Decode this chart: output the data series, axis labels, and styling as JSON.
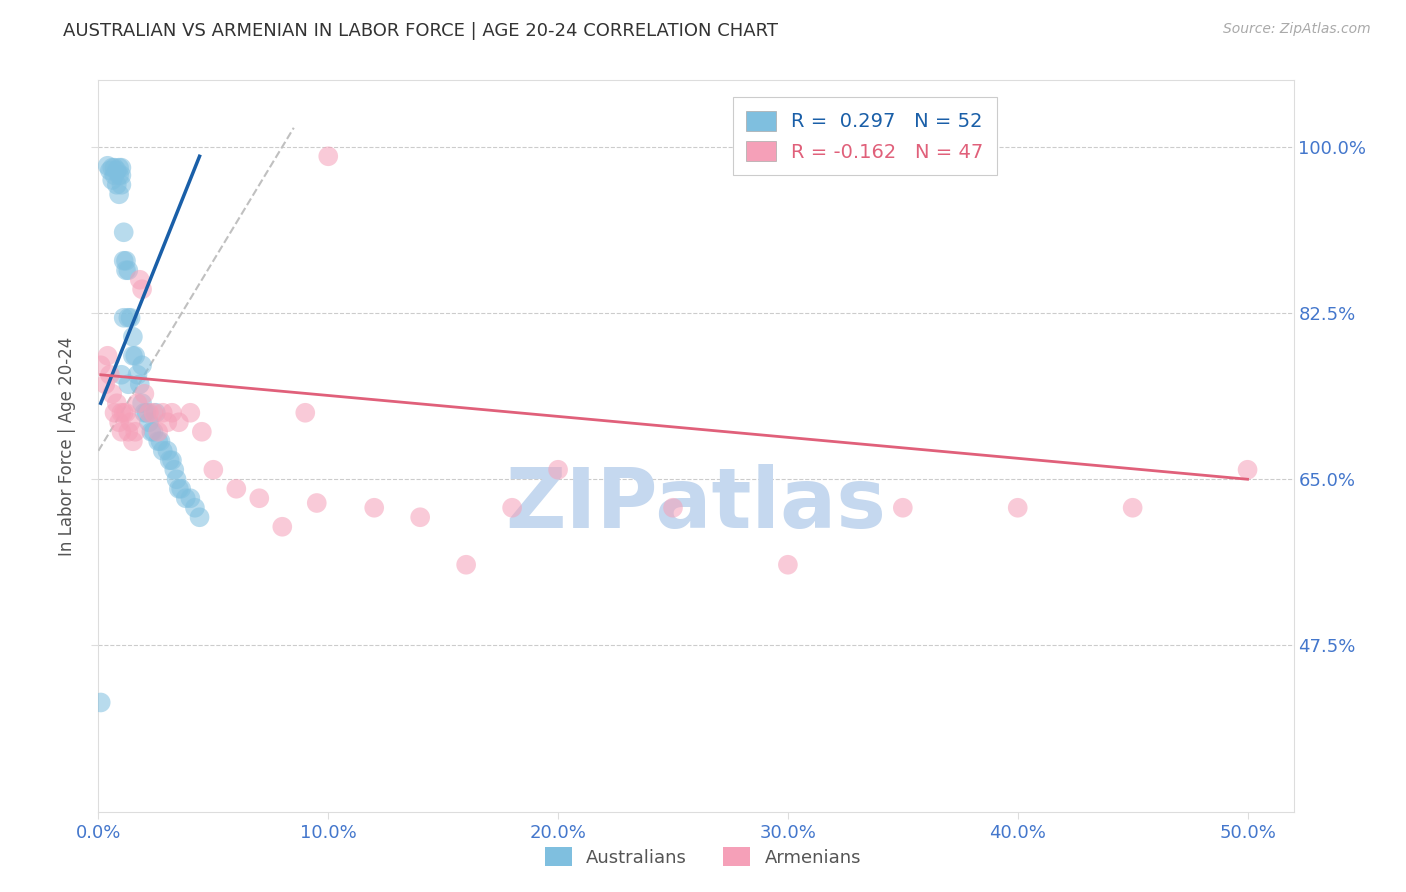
{
  "title": "AUSTRALIAN VS ARMENIAN IN LABOR FORCE | AGE 20-24 CORRELATION CHART",
  "source": "Source: ZipAtlas.com",
  "ylabel": "In Labor Force | Age 20-24",
  "x_tick_labels": [
    "0.0%",
    "10.0%",
    "20.0%",
    "30.0%",
    "40.0%",
    "50.0%"
  ],
  "x_tick_values": [
    0.0,
    0.1,
    0.2,
    0.3,
    0.4,
    0.5
  ],
  "y_tick_labels": [
    "47.5%",
    "65.0%",
    "82.5%",
    "100.0%"
  ],
  "y_tick_values": [
    0.475,
    0.65,
    0.825,
    1.0
  ],
  "xlim": [
    0.0,
    0.52
  ],
  "ylim": [
    0.3,
    1.07
  ],
  "legend_label_1": "Australians",
  "legend_label_2": "Armenians",
  "R_aus": 0.297,
  "N_aus": 52,
  "R_arm": -0.162,
  "N_arm": 47,
  "blue_color": "#7fbfdf",
  "blue_line_color": "#1a5fa8",
  "pink_color": "#f5a0b8",
  "pink_line_color": "#e0607a",
  "ref_line_color": "#c0c0c0",
  "grid_color": "#cccccc",
  "title_color": "#333333",
  "axis_label_color": "#555555",
  "tick_label_color": "#4477cc",
  "source_color": "#aaaaaa",
  "watermark_color": "#c5d8ef",
  "aus_x": [
    0.001,
    0.004,
    0.005,
    0.006,
    0.006,
    0.007,
    0.007,
    0.008,
    0.008,
    0.009,
    0.009,
    0.009,
    0.01,
    0.01,
    0.01,
    0.01,
    0.011,
    0.011,
    0.012,
    0.012,
    0.013,
    0.013,
    0.014,
    0.015,
    0.015,
    0.016,
    0.017,
    0.018,
    0.019,
    0.019,
    0.02,
    0.021,
    0.022,
    0.023,
    0.024,
    0.025,
    0.026,
    0.027,
    0.028,
    0.03,
    0.031,
    0.032,
    0.033,
    0.034,
    0.035,
    0.036,
    0.038,
    0.04,
    0.042,
    0.044,
    0.011,
    0.013
  ],
  "aus_y": [
    0.415,
    0.98,
    0.975,
    0.978,
    0.965,
    0.978,
    0.97,
    0.975,
    0.96,
    0.978,
    0.97,
    0.95,
    0.978,
    0.97,
    0.96,
    0.76,
    0.91,
    0.88,
    0.88,
    0.87,
    0.87,
    0.82,
    0.82,
    0.8,
    0.78,
    0.78,
    0.76,
    0.75,
    0.73,
    0.77,
    0.72,
    0.72,
    0.71,
    0.7,
    0.7,
    0.72,
    0.69,
    0.69,
    0.68,
    0.68,
    0.67,
    0.67,
    0.66,
    0.65,
    0.64,
    0.64,
    0.63,
    0.63,
    0.62,
    0.61,
    0.82,
    0.75
  ],
  "arm_x": [
    0.001,
    0.003,
    0.004,
    0.005,
    0.006,
    0.007,
    0.008,
    0.009,
    0.01,
    0.01,
    0.011,
    0.012,
    0.013,
    0.014,
    0.015,
    0.016,
    0.017,
    0.018,
    0.019,
    0.02,
    0.022,
    0.024,
    0.026,
    0.028,
    0.03,
    0.032,
    0.035,
    0.04,
    0.045,
    0.05,
    0.06,
    0.07,
    0.08,
    0.09,
    0.1,
    0.12,
    0.14,
    0.16,
    0.2,
    0.25,
    0.3,
    0.35,
    0.4,
    0.45,
    0.5,
    0.095,
    0.18
  ],
  "arm_y": [
    0.77,
    0.75,
    0.78,
    0.76,
    0.74,
    0.72,
    0.73,
    0.71,
    0.72,
    0.7,
    0.72,
    0.72,
    0.7,
    0.71,
    0.69,
    0.7,
    0.73,
    0.86,
    0.85,
    0.74,
    0.72,
    0.72,
    0.7,
    0.72,
    0.71,
    0.72,
    0.71,
    0.72,
    0.7,
    0.66,
    0.64,
    0.63,
    0.6,
    0.72,
    0.99,
    0.62,
    0.61,
    0.56,
    0.66,
    0.62,
    0.56,
    0.62,
    0.62,
    0.62,
    0.66,
    0.625,
    0.62
  ],
  "blue_line_x": [
    0.001,
    0.044
  ],
  "blue_line_y": [
    0.73,
    0.99
  ],
  "pink_line_x": [
    0.001,
    0.5
  ],
  "pink_line_y": [
    0.76,
    0.65
  ],
  "ref_line_x": [
    0.0,
    0.085
  ],
  "ref_line_y": [
    0.68,
    1.02
  ]
}
